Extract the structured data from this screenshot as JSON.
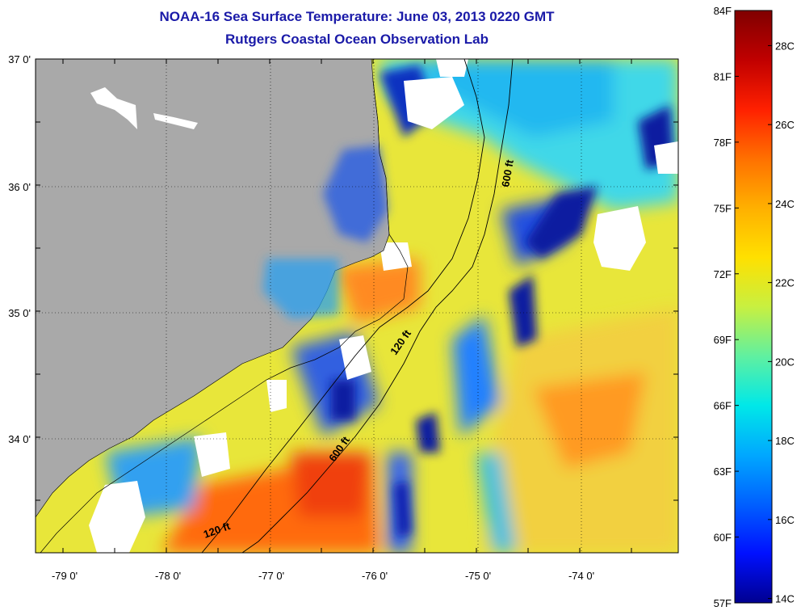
{
  "title": "NOAA-16 Sea Surface Temperature:  June 03, 2013 0220 GMT",
  "subtitle": "Rutgers Coastal Ocean Observation Lab",
  "lat_labels": [
    "37 0'",
    "36 0'",
    "35 0'",
    "34 0'"
  ],
  "lon_labels": [
    "-79 0'",
    "-78 0'",
    "-77 0'",
    "-76 0'",
    "-75 0'",
    "-74 0'"
  ],
  "contour_labels": [
    "600 ft",
    "120 ft",
    "600 ft",
    "120 ft"
  ],
  "colorbar": {
    "f_labels": [
      "84F",
      "81F",
      "78F",
      "75F",
      "72F",
      "69F",
      "66F",
      "63F",
      "60F",
      "57F"
    ],
    "c_labels": [
      "28C",
      "26C",
      "24C",
      "22C",
      "20C",
      "18C",
      "16C",
      "14C"
    ],
    "colors": [
      "#800000",
      "#c00000",
      "#ff2000",
      "#ff7000",
      "#ffb000",
      "#ffe000",
      "#c8f040",
      "#60f0a0",
      "#00e8e8",
      "#00a8ff",
      "#0060ff",
      "#0010ff",
      "#000090"
    ]
  },
  "colors": {
    "land": "#a9a9a9",
    "nodata": "#ffffff",
    "title": "#1a1aa8"
  }
}
